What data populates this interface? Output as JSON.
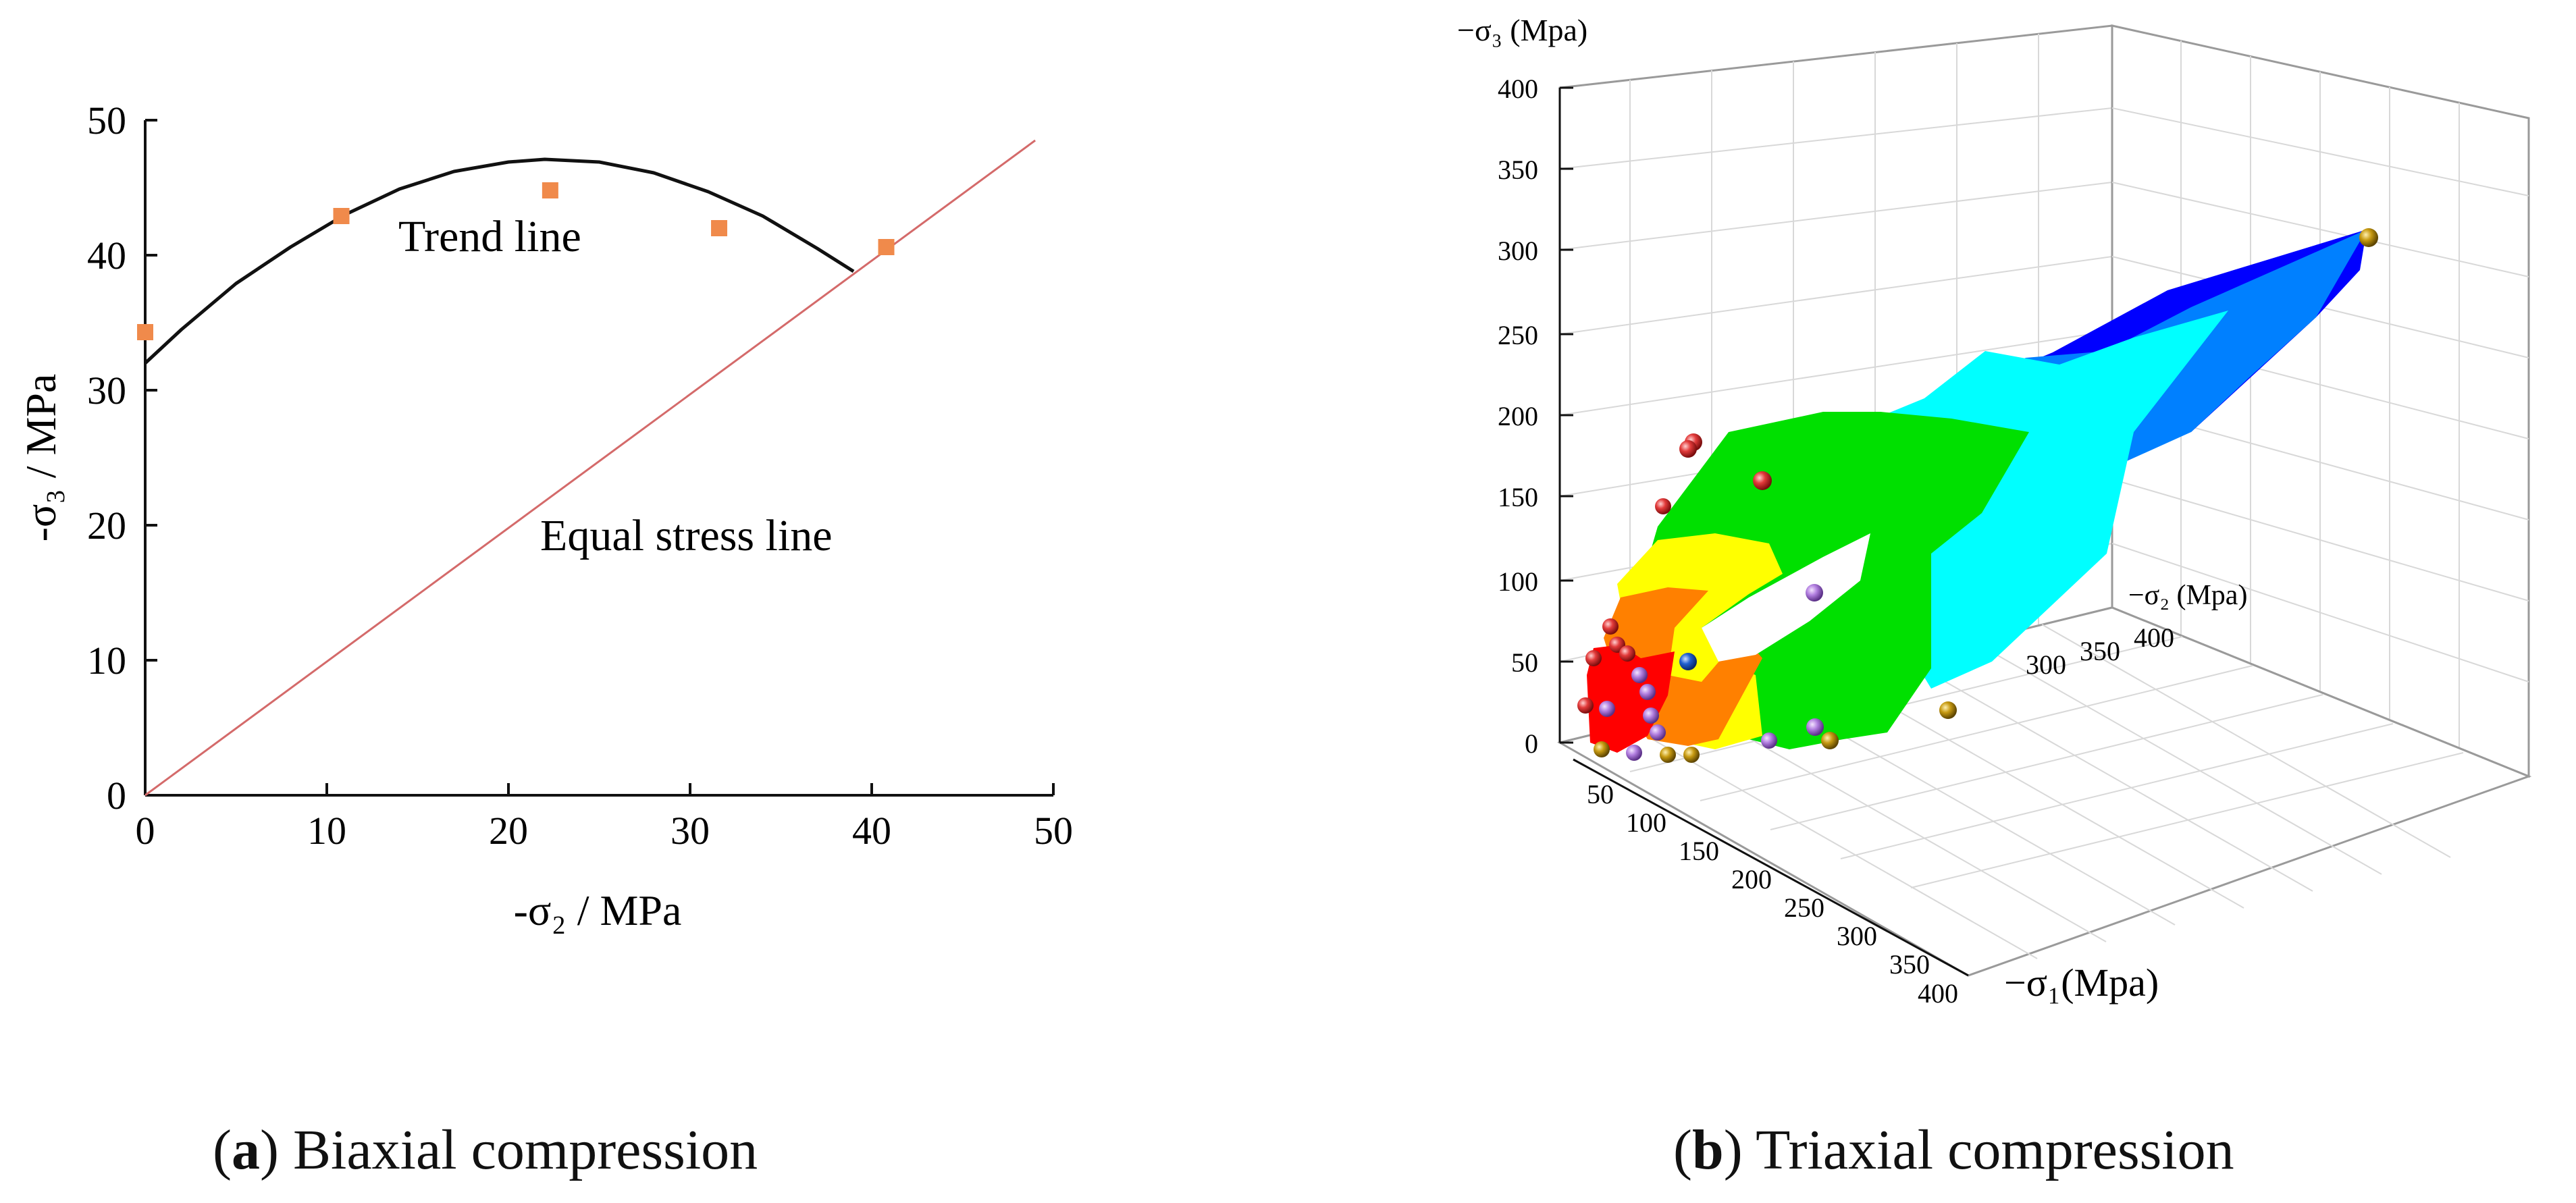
{
  "chart_data": [
    {
      "id": "a",
      "type": "scatter",
      "subtitle_label": "a",
      "subtitle_text": " Biaxial compression",
      "xlabel": "-σ₂ / MPa",
      "ylabel": "-σ₃ / MPa",
      "xlim": [
        0,
        50
      ],
      "ylim": [
        0,
        50
      ],
      "xticks": [
        "0",
        "10",
        "20",
        "30",
        "40",
        "50"
      ],
      "yticks": [
        "0",
        "10",
        "20",
        "30",
        "40",
        "50"
      ],
      "points": {
        "x": [
          0,
          10.8,
          22.3,
          31.6,
          40.8
        ],
        "y": [
          34.3,
          42.9,
          44.8,
          42.0,
          40.6
        ],
        "color": "#f08a4b"
      },
      "trend_line": {
        "label": "Trend line",
        "x": [
          0,
          2,
          5,
          8,
          11,
          14,
          17,
          20,
          22,
          25,
          28,
          31,
          34,
          37,
          39
        ],
        "y": [
          32.0,
          34.5,
          37.9,
          40.6,
          43.0,
          44.9,
          46.2,
          46.9,
          47.1,
          46.9,
          46.1,
          44.7,
          42.9,
          40.5,
          38.8
        ],
        "color": "#111111"
      },
      "equal_stress_line": {
        "label": "Equal stress line",
        "x": [
          0,
          49
        ],
        "y": [
          0,
          48.5
        ],
        "color": "#d46a6a"
      }
    },
    {
      "id": "b",
      "type": "surface3d",
      "subtitle_label": "b",
      "subtitle_text": " Triaxial compression",
      "z_axis_label": "−σ₃ (Mpa)",
      "y_axis_label": "−σ₂ (Mpa)",
      "x_axis_label": "−σ₁(Mpa)",
      "z_ticks": [
        "400",
        "350",
        "300",
        "250",
        "200",
        "150",
        "100",
        "50",
        "0"
      ],
      "x_ticks": [
        "50",
        "100",
        "150",
        "200",
        "250",
        "300",
        "350",
        "400"
      ],
      "y_ticks": [
        "400",
        "350",
        "300"
      ],
      "color_bands": [
        "#ff0000",
        "#ff8000",
        "#ffff00",
        "#00e000",
        "#00ffff",
        "#0080ff",
        "#0000ff"
      ],
      "marker_colors": {
        "red": "#e23a3a",
        "gold": "#c79a12",
        "violet": "#b27fe0",
        "blue": "#1f5fd0"
      }
    }
  ]
}
